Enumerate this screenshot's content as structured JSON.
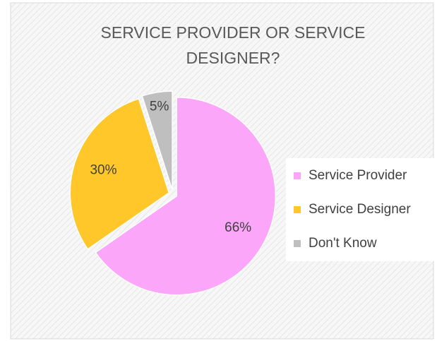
{
  "chart_data": {
    "type": "pie",
    "title": "SERVICE PROVIDER OR SERVICE DESIGNER?",
    "categories": [
      "Service Provider",
      "Service Designer",
      "Don't Know"
    ],
    "values": [
      66,
      30,
      5
    ],
    "value_labels": [
      "66%",
      "30%",
      "5%"
    ],
    "colors": [
      "#fba6f9",
      "#ffc72a",
      "#bfbfbf"
    ],
    "legend": "right"
  }
}
